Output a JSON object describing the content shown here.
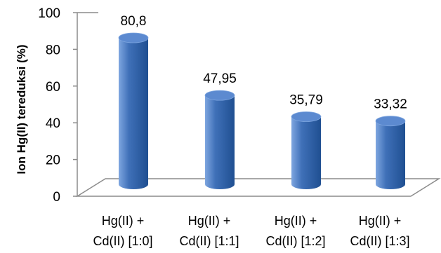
{
  "chart_data": {
    "type": "bar",
    "style": "3d-cylinder",
    "title": "",
    "xlabel": "",
    "ylabel": "Ion Hg(II) tereduksi (%)",
    "ylim": [
      0,
      100
    ],
    "yticks": [
      "0",
      "20",
      "40",
      "60",
      "80",
      "100"
    ],
    "categories": [
      [
        "Hg(II) +",
        "Cd(II) [1:0]"
      ],
      [
        "Hg(II) +",
        "Cd(II) [1:1]"
      ],
      [
        "Hg(II) +",
        "Cd(II) [1:2]"
      ],
      [
        "Hg(II) +",
        "Cd(II) [1:3]"
      ]
    ],
    "values": [
      80.8,
      47.95,
      35.79,
      33.32
    ],
    "value_labels": [
      "80,8",
      "47,95",
      "35,79",
      "33,32"
    ],
    "grid": false,
    "legend": "none",
    "colors": {
      "bar_light": "#7ea6e0",
      "bar_main": "#3f70b8",
      "bar_dark": "#1f4f91",
      "bar_top": "#5c8ad0",
      "axis": "#8c8c8c"
    }
  }
}
